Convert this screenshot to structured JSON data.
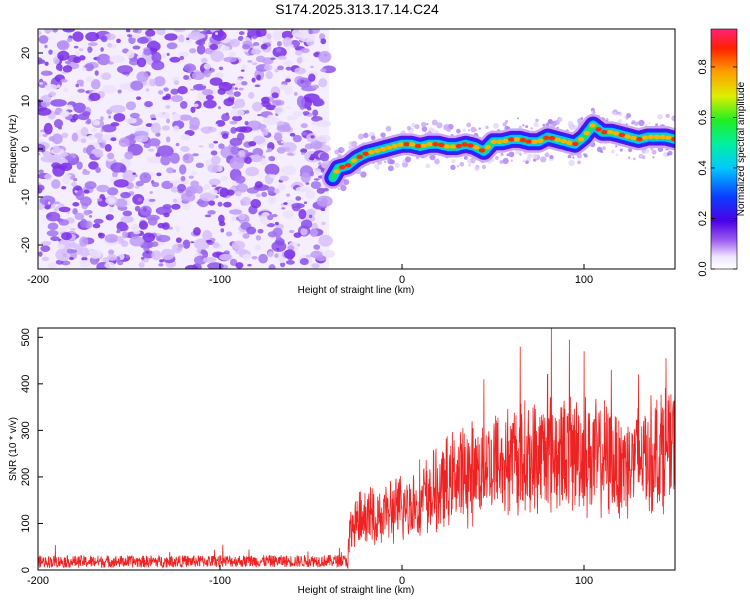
{
  "figure": {
    "title": "S174.2025.313.17.14.C24"
  },
  "chart_data": [
    {
      "type": "heatmap",
      "title": "S174.2025.313.17.14.C24",
      "xlabel": "Height of straight line (km)",
      "ylabel": "Frequency (Hz)",
      "xlim": [
        -200,
        150
      ],
      "ylim": [
        -25,
        25
      ],
      "xticks": [
        "-200",
        "-100",
        "0",
        "100"
      ],
      "xtick_values": [
        -200,
        -100,
        0,
        100
      ],
      "yticks": [
        "-20",
        "-10",
        "0",
        "10",
        "20"
      ],
      "ytick_values": [
        -20,
        -10,
        0,
        10,
        20
      ],
      "noise_region_km": [
        -200,
        -40
      ],
      "colorbar": {
        "label": "Normalized spectral amplitude",
        "range": [
          0,
          0.95
        ],
        "ticks": [
          "0.0",
          "0.2",
          "0.4",
          "0.6",
          "0.8"
        ],
        "tick_values": [
          0,
          0.2,
          0.4,
          0.6,
          0.8
        ]
      },
      "ridge": {
        "x_km": [
          -38,
          -35,
          -30,
          -25,
          -20,
          -15,
          -10,
          -5,
          0,
          5,
          10,
          15,
          20,
          25,
          30,
          35,
          40,
          45,
          50,
          55,
          60,
          65,
          70,
          75,
          80,
          85,
          90,
          95,
          100,
          105,
          110,
          115,
          120,
          125,
          130,
          135,
          140,
          145,
          150
        ],
        "freq_hz": [
          -6,
          -4,
          -3.5,
          -2,
          -1,
          -0.5,
          0,
          0.5,
          1,
          1,
          0.5,
          1,
          1,
          0.5,
          0.5,
          1,
          0.5,
          -0.5,
          1.5,
          1.5,
          2,
          2,
          1.5,
          1.5,
          2.5,
          2,
          1.5,
          1,
          2.5,
          5,
          3.5,
          3.5,
          3,
          2.5,
          2,
          2.5,
          2.5,
          2.5,
          2
        ]
      }
    },
    {
      "type": "line",
      "xlabel": "Height of straight line (km)",
      "ylabel": "SNR (10 * v/v)",
      "xlim": [
        -200,
        150
      ],
      "ylim": [
        0,
        520
      ],
      "xticks": [
        "-200",
        "-100",
        "0",
        "100"
      ],
      "xtick_values": [
        -200,
        -100,
        0,
        100
      ],
      "yticks": [
        "0",
        "100",
        "200",
        "300",
        "400",
        "500"
      ],
      "ytick_values": [
        0,
        100,
        200,
        300,
        400,
        500
      ],
      "series": [
        {
          "name": "SNR",
          "color": "#ee2222",
          "x": [
            -200,
            -150,
            -100,
            -60,
            -30,
            -28,
            -20,
            -10,
            0,
            10,
            20,
            30,
            40,
            50,
            60,
            70,
            80,
            90,
            100,
            110,
            120,
            130,
            140,
            145,
            150
          ],
          "y": [
            18,
            18,
            19,
            19,
            20,
            90,
            110,
            120,
            130,
            150,
            170,
            200,
            210,
            230,
            240,
            240,
            250,
            250,
            250,
            240,
            230,
            240,
            250,
            270,
            260
          ],
          "peaks": {
            "x": [
              45,
              65,
              80,
              82,
              92,
              100,
              115,
              130,
              145
            ],
            "y": [
              410,
              480,
              420,
              520,
              495,
              470,
              430,
              420,
              455
            ]
          }
        }
      ]
    }
  ]
}
